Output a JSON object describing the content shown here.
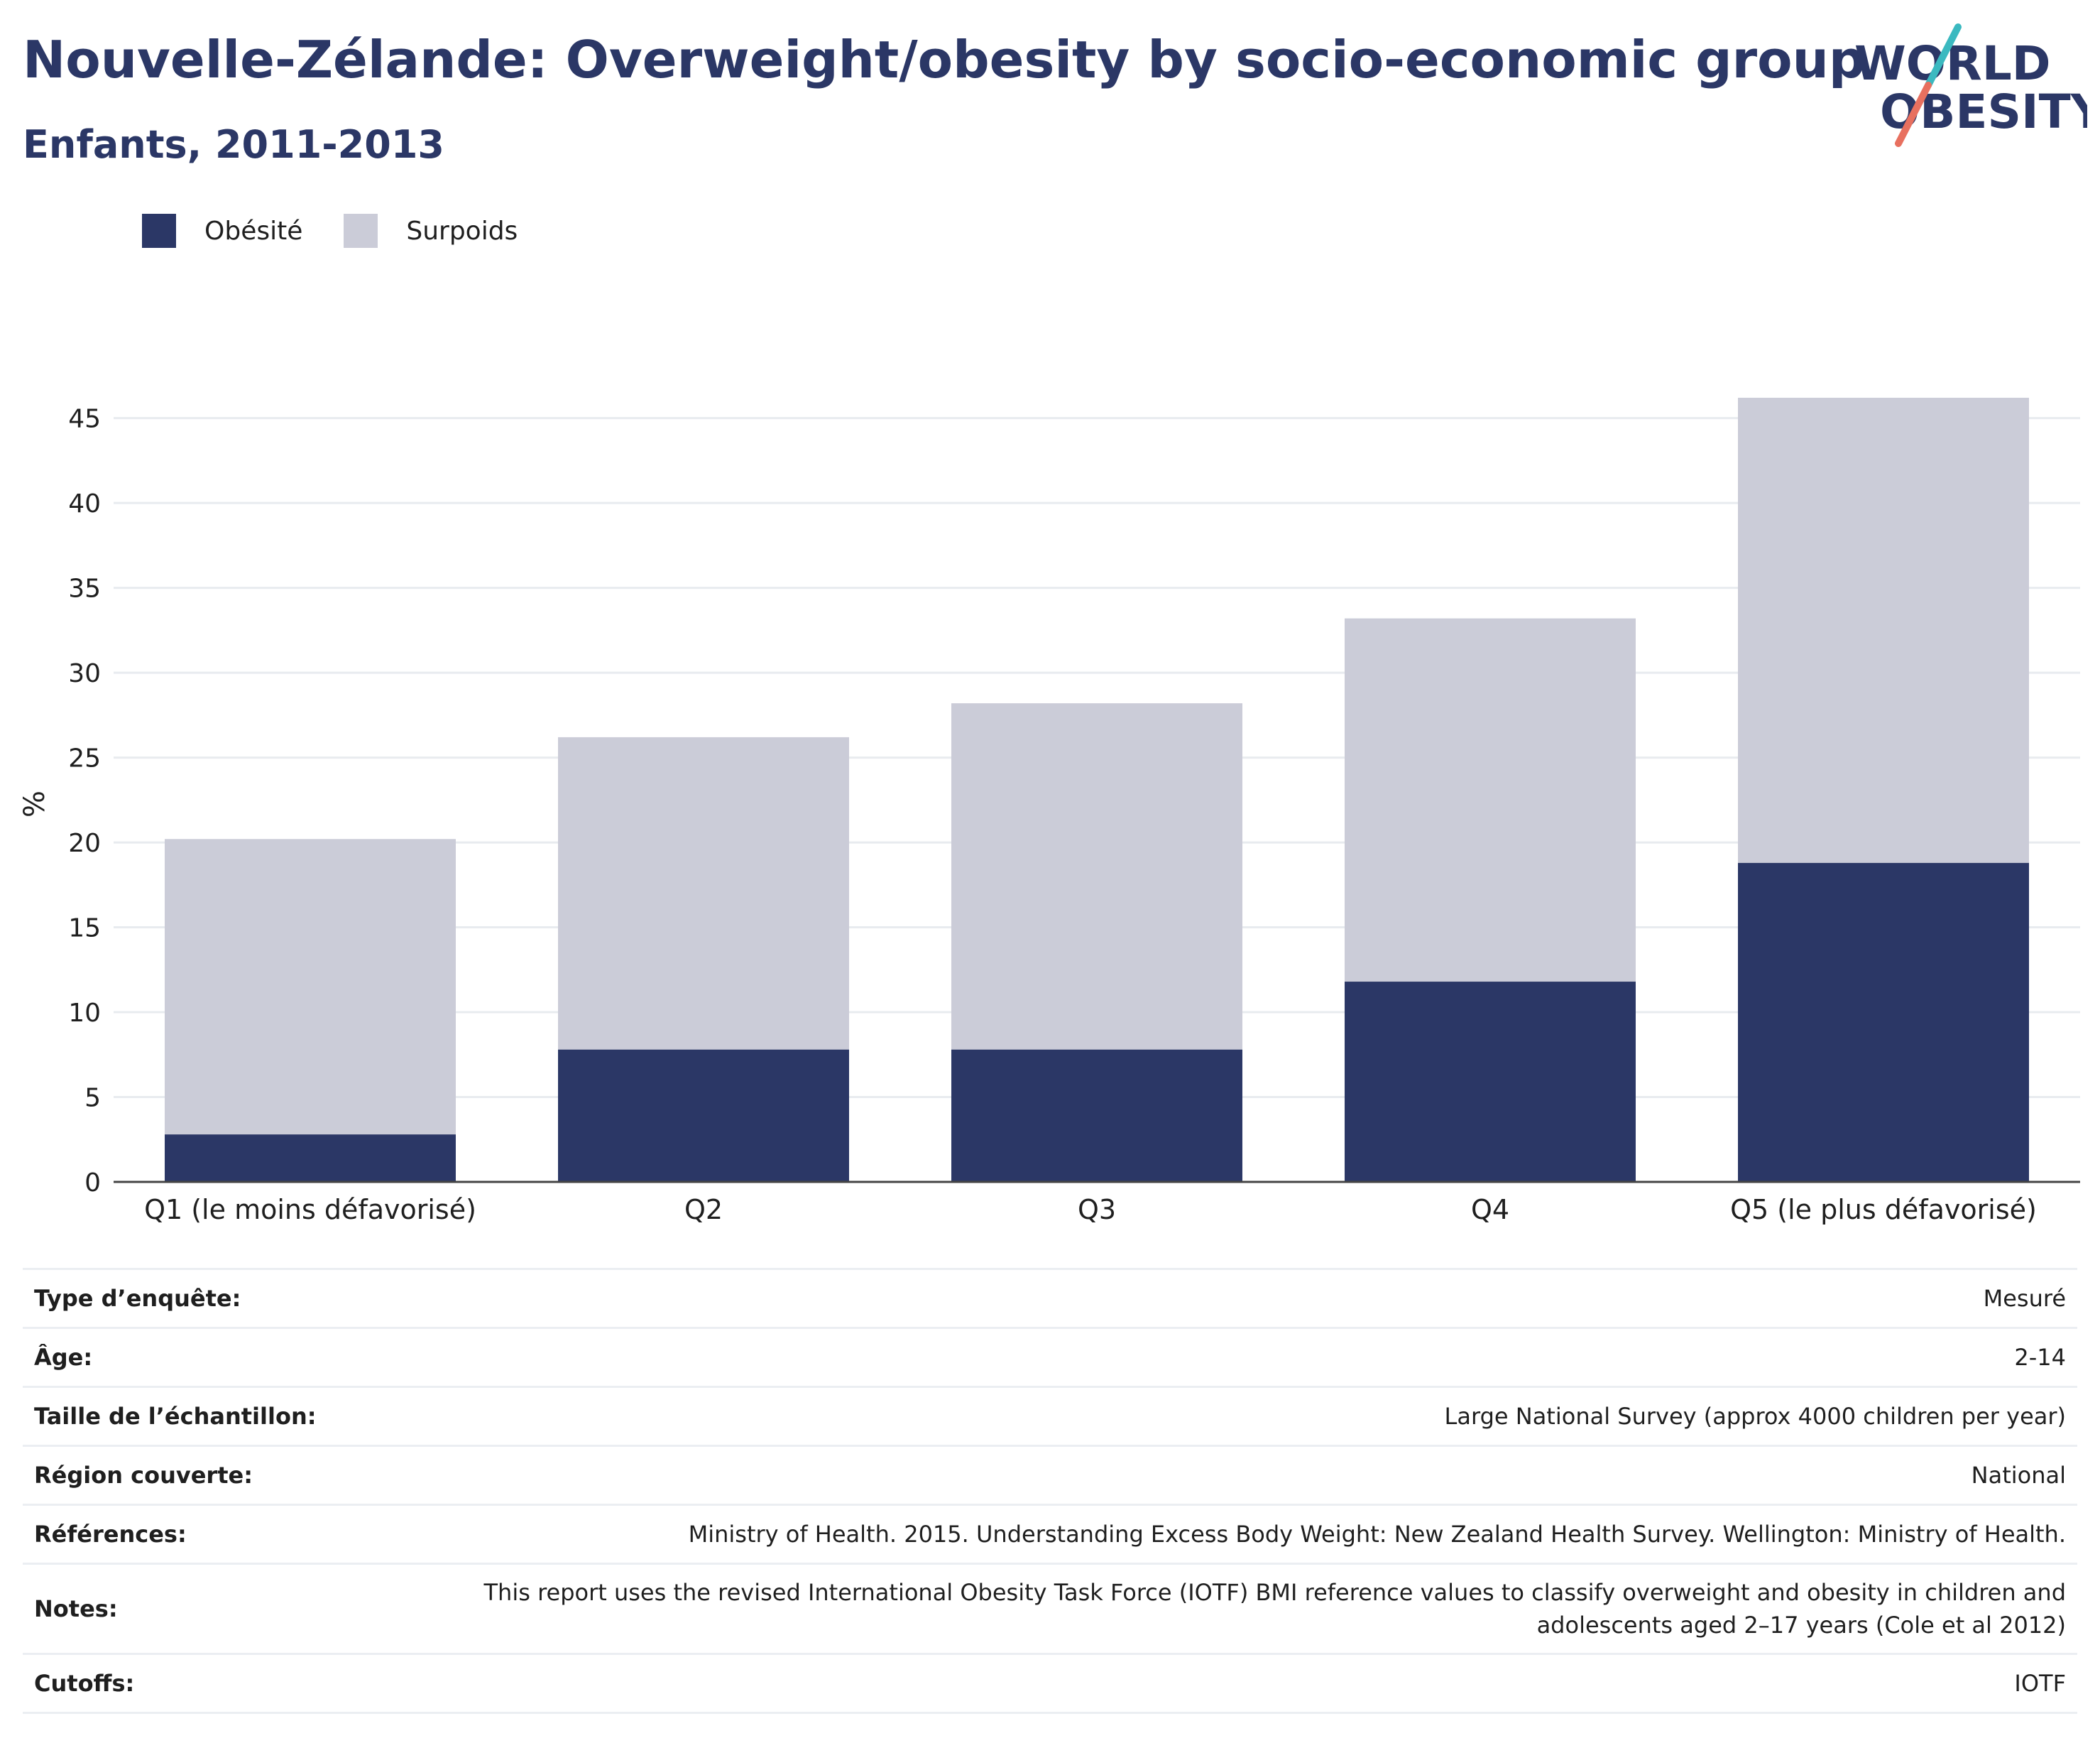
{
  "header": {
    "title": "Nouvelle-Zélande: Overweight/obesity by socio-economic group",
    "subtitle": "Enfants, 2011-2013"
  },
  "logo": {
    "line1": "WORLD",
    "line2": "OBESITY",
    "accent_teal": "#3bb9c0",
    "accent_coral": "#e8705f"
  },
  "legend": [
    {
      "label": "Obésité",
      "color": "#2b3766"
    },
    {
      "label": "Surpoids",
      "color": "#cbccd8"
    }
  ],
  "chart_data": {
    "type": "bar",
    "stacked": true,
    "categories": [
      "Q1 (le moins défavorisé)",
      "Q2",
      "Q3",
      "Q4",
      "Q5 (le plus défavorisé)"
    ],
    "series": [
      {
        "name": "Obésité",
        "values": [
          2.8,
          7.8,
          7.8,
          11.8,
          18.8
        ],
        "color": "#2b3766"
      },
      {
        "name": "Surpoids",
        "values": [
          17.4,
          18.4,
          20.4,
          21.4,
          27.4
        ],
        "color": "#cbccd8"
      }
    ],
    "ylabel": "%",
    "ylim": [
      0,
      46.2
    ],
    "yticks": [
      0,
      5,
      10,
      15,
      20,
      25,
      30,
      35,
      40,
      45
    ],
    "grid": true
  },
  "info_table": [
    {
      "label": "Type d’enquête:",
      "value": "Mesuré"
    },
    {
      "label": "Âge:",
      "value": "2-14"
    },
    {
      "label": "Taille de l’échantillon:",
      "value": "Large National Survey (approx 4000 children per year)"
    },
    {
      "label": "Région couverte:",
      "value": "National"
    },
    {
      "label": "Références:",
      "value": "Ministry of Health. 2015. Understanding Excess Body Weight: New Zealand Health Survey. Wellington: Ministry of Health."
    },
    {
      "label": "Notes:",
      "value": "This report uses the revised International Obesity Task Force (IOTF) BMI reference values to classify overweight and obesity in children and adolescents aged 2–17 years (Cole et al 2012)"
    },
    {
      "label": "Cutoffs:",
      "value": "IOTF"
    }
  ]
}
